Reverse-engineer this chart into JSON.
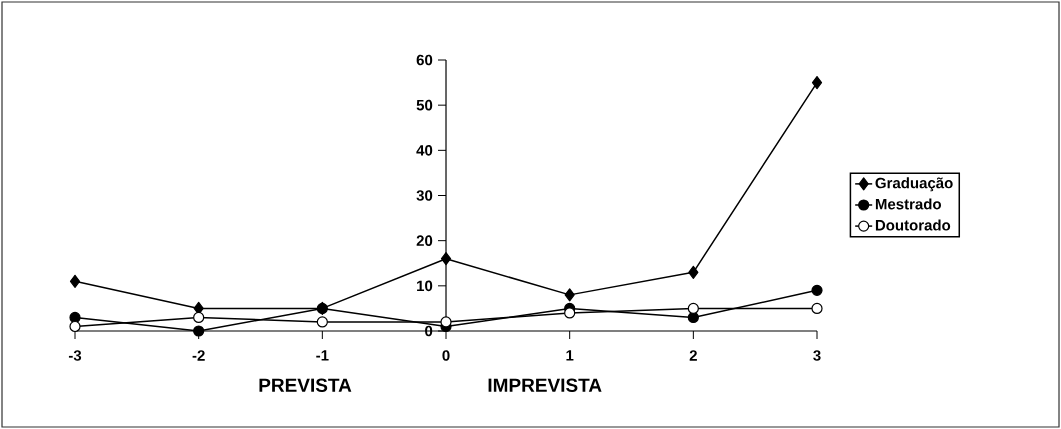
{
  "chart_data": {
    "type": "line",
    "x": [
      -3,
      -2,
      -1,
      0,
      1,
      2,
      3
    ],
    "series": [
      {
        "name": "Graduação",
        "color": "#000000",
        "marker": "diamond",
        "values": [
          11,
          5,
          5,
          16,
          8,
          13,
          55
        ]
      },
      {
        "name": "Mestrado",
        "color": "#000000",
        "marker": "circle",
        "values": [
          3,
          0,
          5,
          1,
          5,
          3,
          9
        ]
      },
      {
        "name": "Doutorado",
        "color": "#ffffff",
        "marker": "circle",
        "values": [
          1,
          3,
          2,
          2,
          4,
          5,
          5
        ]
      }
    ],
    "xlim": [
      -3,
      3
    ],
    "xticks": [
      -3,
      -2,
      -1,
      0,
      1,
      2,
      3
    ],
    "ylim": [
      0,
      60
    ],
    "yticks": [
      0,
      10,
      20,
      30,
      40,
      50,
      60
    ],
    "annotations": [
      "PREVISTA",
      "IMPREVISTA"
    ],
    "legend": "right",
    "grid": false,
    "line_style": "solid"
  }
}
